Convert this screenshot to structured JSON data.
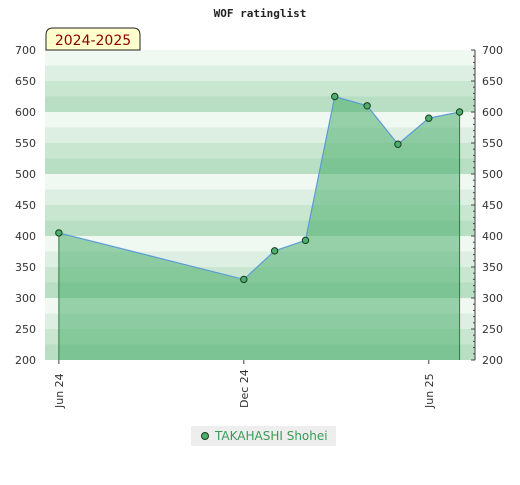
{
  "chart_data": {
    "type": "area",
    "title": "WOF ratinglist",
    "badge": "2024-2025",
    "ylim": [
      200,
      700
    ],
    "yticks": [
      200,
      250,
      300,
      350,
      400,
      450,
      500,
      550,
      600,
      650,
      700
    ],
    "xticks": [
      "Jun 24",
      "Dec 24",
      "Jun 25"
    ],
    "series": [
      {
        "name": "TAKAHASHI Shohei",
        "points": [
          {
            "x": 0.0,
            "y": 405
          },
          {
            "x": 6.0,
            "y": 330
          },
          {
            "x": 7.0,
            "y": 376
          },
          {
            "x": 8.0,
            "y": 393
          },
          {
            "x": 8.95,
            "y": 625
          },
          {
            "x": 10.0,
            "y": 610
          },
          {
            "x": 11.0,
            "y": 548
          },
          {
            "x": 12.0,
            "y": 590
          },
          {
            "x": 13.0,
            "y": 600
          }
        ]
      }
    ],
    "xtick_positions": [
      0,
      6,
      12
    ],
    "xlim": [
      -0.45,
      13.5
    ],
    "colors": {
      "line": "#5b9bd5",
      "fill": "#4caf6e",
      "marker": "#4caf6e",
      "marker_edge": "#1a3d1f",
      "band_dark": "#b5ddc0",
      "band_light": "#f0f8f2",
      "badge_bg": "#ffffcc"
    }
  }
}
